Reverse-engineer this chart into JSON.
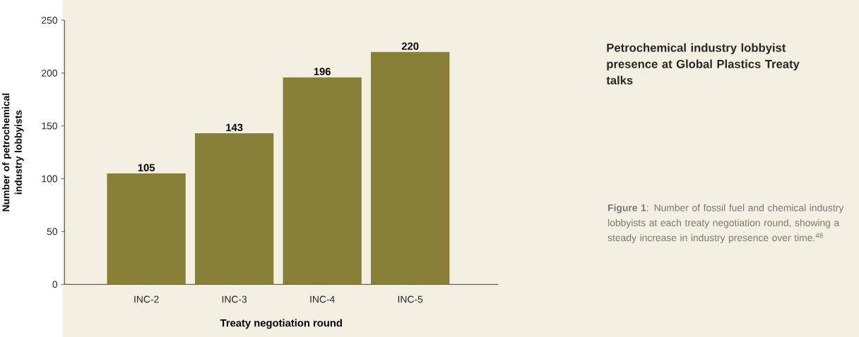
{
  "chart_data": {
    "type": "bar",
    "title": "Petrochemical industry lobbyist presence at Global Plastics Treaty talks",
    "categories": [
      "INC-2",
      "INC-3",
      "INC-4",
      "INC-5"
    ],
    "values": [
      105,
      143,
      196,
      220
    ],
    "color": "#878036",
    "xlabel": "Treaty negotiation round",
    "ylabel": "Number of petrochemical industry lobbyists",
    "ylim": [
      0,
      250
    ],
    "yticks": [
      0,
      50,
      100,
      150,
      200,
      250
    ],
    "data_labels": true,
    "annotations": [
      "**Figure 1**: Number of fossil fuel and chemical industry lobbyists at each treaty negotiation round, showing a steady increase in industry presence over time.$^{48}$"
    ]
  }
}
